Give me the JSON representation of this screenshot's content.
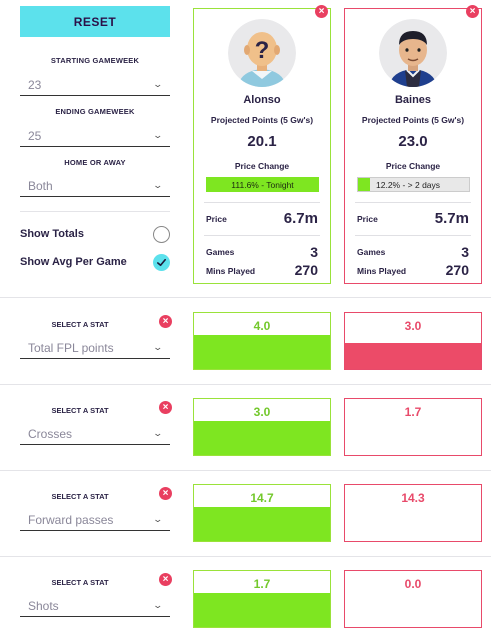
{
  "controls": {
    "reset_label": "RESET",
    "starting_gw_label": "STARTING GAMEWEEK",
    "starting_gw_value": "23",
    "ending_gw_label": "ENDING GAMEWEEK",
    "ending_gw_value": "25",
    "home_away_label": "HOME OR AWAY",
    "home_away_value": "Both",
    "show_totals_label": "Show Totals",
    "show_avg_label": "Show Avg Per Game"
  },
  "players": [
    {
      "name": "Alonso",
      "projected_points_label": "Projected Points (5 Gw's)",
      "projected_points": "20.1",
      "price_change_label": "Price Change",
      "price_change": "111.6% - Tonight",
      "price_change_fraction": 1.0,
      "price_label": "Price",
      "price": "6.7m",
      "games_label": "Games",
      "games": "3",
      "mins_label": "Mins Played",
      "mins": "270",
      "color": "#7ee621",
      "avatar": "unknown-player-icon"
    },
    {
      "name": "Baines",
      "projected_points_label": "Projected Points (5 Gw's)",
      "projected_points": "23.0",
      "price_change_label": "Price Change",
      "price_change": "12.2% - > 2 days",
      "price_change_fraction": 0.122,
      "price_label": "Price",
      "price": "5.7m",
      "games_label": "Games",
      "games": "3",
      "mins_label": "Mins Played",
      "mins": "270",
      "color": "#ec4b68",
      "avatar": "player-face-icon"
    }
  ],
  "stat_rows": [
    {
      "label": "SELECT A STAT",
      "stat": "Total FPL points",
      "p1": "4.0",
      "p2": "3.0",
      "p1_fraction": 1.0,
      "p2_fraction": 0.75
    },
    {
      "label": "SELECT A STAT",
      "stat": "Crosses",
      "p1": "3.0",
      "p2": "1.7",
      "p1_fraction": 1.0,
      "p2_fraction": 0.0
    },
    {
      "label": "SELECT A STAT",
      "stat": "Forward passes",
      "p1": "14.7",
      "p2": "14.3",
      "p1_fraction": 1.0,
      "p2_fraction": 0.0
    },
    {
      "label": "SELECT A STAT",
      "stat": "Shots",
      "p1": "1.7",
      "p2": "0.0",
      "p1_fraction": 1.0,
      "p2_fraction": 0.0
    }
  ]
}
